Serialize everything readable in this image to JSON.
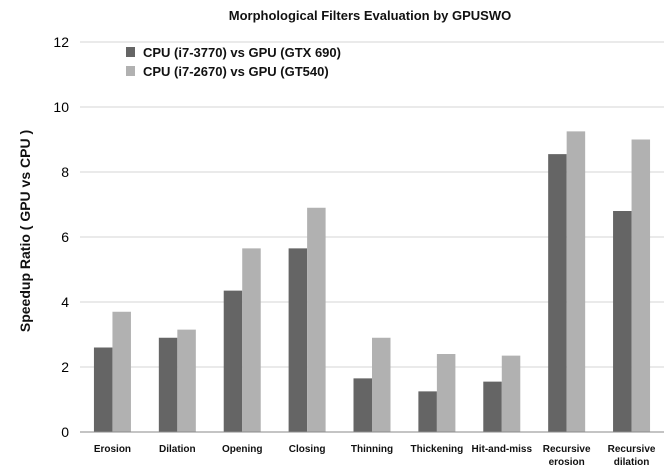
{
  "chart_data": {
    "type": "bar",
    "title": "Morphological Filters Evaluation by GPUSWO",
    "xlabel": "",
    "ylabel": "Speedup Ratio (  GPU vs CPU )",
    "ylim": [
      0,
      12
    ],
    "yticks": [
      0,
      2,
      4,
      6,
      8,
      10,
      12
    ],
    "grid": true,
    "legend_position": "top-left",
    "categories": [
      "Erosion",
      "Dilation",
      "Opening",
      "Closing",
      "Thinning",
      "Thickening",
      "Hit-and-miss",
      "Recursive erosion",
      "Recursive dilation"
    ],
    "category_lines": [
      [
        "Erosion"
      ],
      [
        "Dilation"
      ],
      [
        "Opening"
      ],
      [
        "Closing"
      ],
      [
        "Thinning"
      ],
      [
        "Thickening"
      ],
      [
        "Hit-and-miss"
      ],
      [
        "Recursive",
        "erosion"
      ],
      [
        "Recursive",
        "dilation"
      ]
    ],
    "series": [
      {
        "name": "CPU (i7-3770) vs GPU (GTX 690)",
        "color": "#656565",
        "values": [
          2.6,
          2.9,
          4.35,
          5.65,
          1.65,
          1.25,
          1.55,
          8.55,
          6.8
        ]
      },
      {
        "name": "CPU (i7-2670) vs GPU (GT540)",
        "color": "#b1b1b1",
        "values": [
          3.7,
          3.15,
          5.65,
          6.9,
          2.9,
          2.4,
          2.35,
          9.25,
          9.0
        ]
      }
    ]
  }
}
